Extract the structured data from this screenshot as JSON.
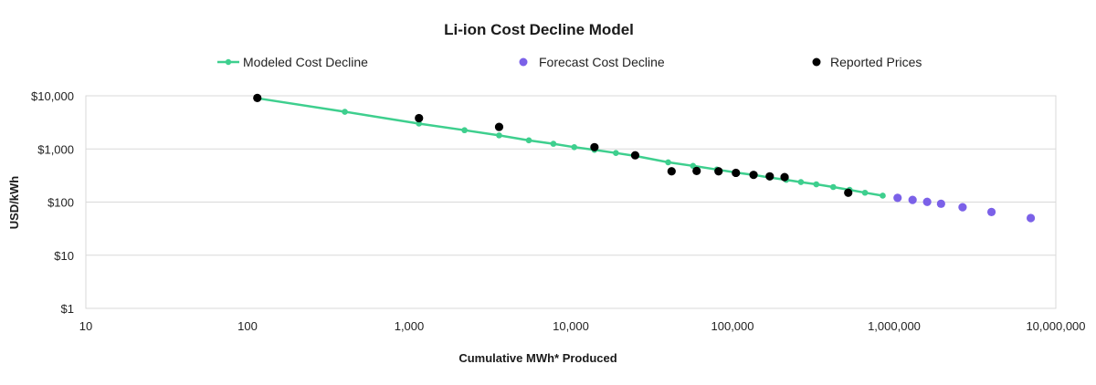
{
  "chart_data": {
    "type": "scatter",
    "title": "Li-ion Cost Decline Model",
    "xlabel": "Cumulative MWh* Produced",
    "ylabel": "USD/kWh",
    "xscale": "log",
    "yscale": "log",
    "xlim": [
      10,
      10000000
    ],
    "ylim": [
      1,
      10000
    ],
    "x_ticks": [
      10,
      100,
      1000,
      10000,
      100000,
      1000000,
      10000000
    ],
    "x_tick_labels": [
      "10",
      "100",
      "1,000",
      "10,000",
      "100,000",
      "1,000,000",
      "10,000,000"
    ],
    "y_ticks": [
      1,
      10,
      100,
      1000,
      10000
    ],
    "y_tick_labels": [
      "$1",
      "$10",
      "$100",
      "$1,000",
      "$10,000"
    ],
    "grid": true,
    "legend_position": "top",
    "colors": {
      "modeled": "#3ecf8e",
      "forecast": "#7b61e8",
      "reported": "#000000"
    },
    "series": [
      {
        "name": "Modeled Cost Decline",
        "style": "line-marker",
        "x": [
          115,
          400,
          1150,
          2200,
          3600,
          5500,
          7800,
          10500,
          14000,
          19000,
          25000,
          40000,
          57000,
          80000,
          105000,
          135000,
          170000,
          215000,
          265000,
          330000,
          420000,
          530000,
          660000,
          850000
        ],
        "y": [
          9000,
          5000,
          3000,
          2250,
          1800,
          1450,
          1250,
          1080,
          960,
          840,
          740,
          560,
          480,
          410,
          360,
          325,
          290,
          262,
          238,
          216,
          192,
          170,
          150,
          132
        ]
      },
      {
        "name": "Forecast Cost Decline",
        "style": "marker",
        "x": [
          1050000,
          1300000,
          1600000,
          1950000,
          2650000,
          4000000,
          7000000
        ],
        "y": [
          120,
          110,
          101,
          93,
          80,
          65,
          50
        ]
      },
      {
        "name": "Reported Prices",
        "style": "marker",
        "x": [
          115,
          1150,
          3600,
          14000,
          25000,
          42000,
          60000,
          82000,
          105000,
          135000,
          170000,
          210000,
          520000
        ],
        "y": [
          9100,
          3800,
          2600,
          1080,
          760,
          380,
          385,
          380,
          355,
          325,
          305,
          295,
          150
        ]
      }
    ]
  }
}
